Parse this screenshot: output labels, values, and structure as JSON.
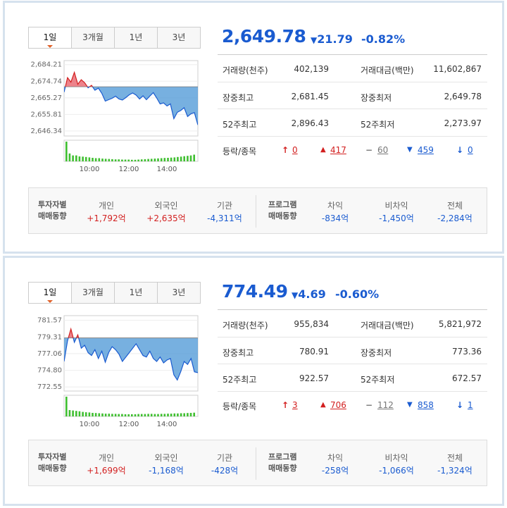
{
  "panels": [
    {
      "tabs": [
        "1일",
        "3개월",
        "1년",
        "3년"
      ],
      "price": "2,649.78",
      "change_arrow": "▼",
      "change": "21.79",
      "change_pct": "-0.82%",
      "stats": [
        {
          "k1": "거래량(천주)",
          "v1": "402,139",
          "k2": "거래대금(백만)",
          "v2": "11,602,867"
        },
        {
          "k1": "장중최고",
          "v1": "2,681.45",
          "k2": "장중최저",
          "v2": "2,649.78"
        },
        {
          "k1": "52주최고",
          "v1": "2,896.43",
          "k2": "52주최저",
          "v2": "2,273.97"
        }
      ],
      "breadth_label": "등락/종목",
      "breadth": {
        "upper_limit": "0",
        "up": "417",
        "flat": "60",
        "down": "459",
        "lower_limit": "0"
      },
      "investor": {
        "header": [
          "투자자별",
          "매매동향"
        ],
        "individual_label": "개인",
        "individual": "+1,792억",
        "foreign_label": "외국인",
        "foreign": "+2,635억",
        "institution_label": "기관",
        "institution": "-4,311억"
      },
      "program": {
        "header": [
          "프로그램",
          "매매동향"
        ],
        "arbitrage_label": "차익",
        "arbitrage": "-834억",
        "non_arbitrage_label": "비차익",
        "non_arbitrage": "-1,450억",
        "total_label": "전체",
        "total": "-2,284억"
      },
      "chart_data": {
        "type": "area",
        "y_ticks": [
          "2,684.21",
          "2,674.74",
          "2,665.27",
          "2,655.81",
          "2,646.34"
        ],
        "y_tick_values": [
          2684.21,
          2674.74,
          2665.27,
          2655.81,
          2646.34
        ],
        "x_ticks": [
          "10:00",
          "12:00",
          "14:00"
        ],
        "ylim": [
          2643.5,
          2686.5
        ],
        "base": 2671.57,
        "x": [
          "09:00",
          "09:10",
          "09:20",
          "09:30",
          "09:40",
          "09:50",
          "10:00",
          "10:10",
          "10:20",
          "10:30",
          "10:40",
          "10:50",
          "11:00",
          "11:10",
          "11:20",
          "11:30",
          "11:40",
          "11:50",
          "12:00",
          "12:10",
          "12:20",
          "12:30",
          "12:40",
          "12:50",
          "13:00",
          "13:10",
          "13:20",
          "13:30",
          "13:40",
          "13:50",
          "14:00",
          "14:10",
          "14:20",
          "14:30",
          "14:40",
          "14:50",
          "15:00",
          "15:10",
          "15:20",
          "15:30"
        ],
        "values": [
          2668.5,
          2676.8,
          2674.2,
          2679.8,
          2673.0,
          2675.6,
          2673.9,
          2671.0,
          2672.4,
          2669.6,
          2670.8,
          2667.8,
          2663.4,
          2664.2,
          2665.0,
          2666.2,
          2664.6,
          2664.0,
          2665.4,
          2667.0,
          2668.0,
          2666.8,
          2664.6,
          2666.4,
          2664.2,
          2666.3,
          2668.2,
          2665.2,
          2661.8,
          2662.4,
          2660.6,
          2661.8,
          2653.4,
          2657.0,
          2658.0,
          2659.6,
          2654.6,
          2656.2,
          2656.8,
          2649.8
        ],
        "volume": [
          10,
          4,
          3,
          3,
          2.5,
          2.4,
          2.2,
          2,
          1.8,
          1.6,
          1.6,
          1.4,
          1.3,
          1.2,
          1.1,
          1,
          1,
          0.9,
          0.9,
          0.9,
          0.8,
          0.8,
          0.9,
          1,
          1.1,
          1.2,
          1.3,
          1.4,
          1.5,
          1.6,
          1.7,
          1.8,
          1.9,
          2,
          2.2,
          2.4,
          2.6,
          2.8,
          3,
          3.4
        ]
      }
    },
    {
      "tabs": [
        "1일",
        "3개월",
        "1년",
        "3년"
      ],
      "price": "774.49",
      "change_arrow": "▼",
      "change": "4.69",
      "change_pct": "-0.60%",
      "stats": [
        {
          "k1": "거래량(천주)",
          "v1": "955,834",
          "k2": "거래대금(백만)",
          "v2": "5,821,972"
        },
        {
          "k1": "장중최고",
          "v1": "780.91",
          "k2": "장중최저",
          "v2": "773.36"
        },
        {
          "k1": "52주최고",
          "v1": "922.57",
          "k2": "52주최저",
          "v2": "672.57"
        }
      ],
      "breadth_label": "등락/종목",
      "breadth": {
        "upper_limit": "3",
        "up": "706",
        "flat": "112",
        "down": "858",
        "lower_limit": "1"
      },
      "investor": {
        "header": [
          "투자자별",
          "매매동향"
        ],
        "individual_label": "개인",
        "individual": "+1,699억",
        "foreign_label": "외국인",
        "foreign": "-1,168억",
        "institution_label": "기관",
        "institution": "-428억"
      },
      "program": {
        "header": [
          "프로그램",
          "매매동향"
        ],
        "arbitrage_label": "차익",
        "arbitrage": "-258억",
        "non_arbitrage_label": "비차익",
        "non_arbitrage": "-1,066억",
        "total_label": "전체",
        "total": "-1,324억"
      },
      "chart_data": {
        "type": "area",
        "y_ticks": [
          "781.57",
          "779.31",
          "777.06",
          "774.80",
          "772.55"
        ],
        "y_tick_values": [
          781.57,
          779.31,
          777.06,
          774.8,
          772.55
        ],
        "x_ticks": [
          "10:00",
          "12:00",
          "14:00"
        ],
        "ylim": [
          772.0,
          782.2
        ],
        "base": 779.18,
        "x": [
          "09:00",
          "09:10",
          "09:20",
          "09:30",
          "09:40",
          "09:50",
          "10:00",
          "10:10",
          "10:20",
          "10:30",
          "10:40",
          "10:50",
          "11:00",
          "11:10",
          "11:20",
          "11:30",
          "11:40",
          "11:50",
          "12:00",
          "12:10",
          "12:20",
          "12:30",
          "12:40",
          "12:50",
          "13:00",
          "13:10",
          "13:20",
          "13:30",
          "13:40",
          "13:50",
          "14:00",
          "14:10",
          "14:20",
          "14:30",
          "14:40",
          "14:50",
          "15:00",
          "15:10",
          "15:20",
          "15:30"
        ],
        "values": [
          776.0,
          778.8,
          780.4,
          778.6,
          779.6,
          777.8,
          778.2,
          777.2,
          776.8,
          777.6,
          776.4,
          777.4,
          775.9,
          777.2,
          778.0,
          777.6,
          777.0,
          776.0,
          776.6,
          777.2,
          777.8,
          778.4,
          777.6,
          776.8,
          776.6,
          777.4,
          776.4,
          776.0,
          776.6,
          775.8,
          776.2,
          776.4,
          774.2,
          773.5,
          774.6,
          776.0,
          775.6,
          776.4,
          774.6,
          774.49
        ],
        "volume": [
          10,
          3.2,
          3,
          2.8,
          2.6,
          2.3,
          2.1,
          2,
          1.8,
          1.7,
          1.6,
          1.5,
          1.4,
          1.4,
          1.3,
          1.3,
          1.2,
          1.2,
          1.1,
          1.1,
          1.1,
          1.1,
          1.2,
          1.2,
          1.2,
          1.3,
          1.3,
          1.2,
          1.2,
          1.3,
          1.3,
          1.4,
          1.4,
          1.5,
          1.5,
          1.6,
          1.6,
          1.7,
          1.8,
          1.9
        ]
      }
    }
  ],
  "colors": {
    "up": "#d21f1f",
    "down": "#1a5bd0",
    "area_down": "#4a95d6",
    "area_up": "#e8646e",
    "volume": "#3fbf30"
  }
}
